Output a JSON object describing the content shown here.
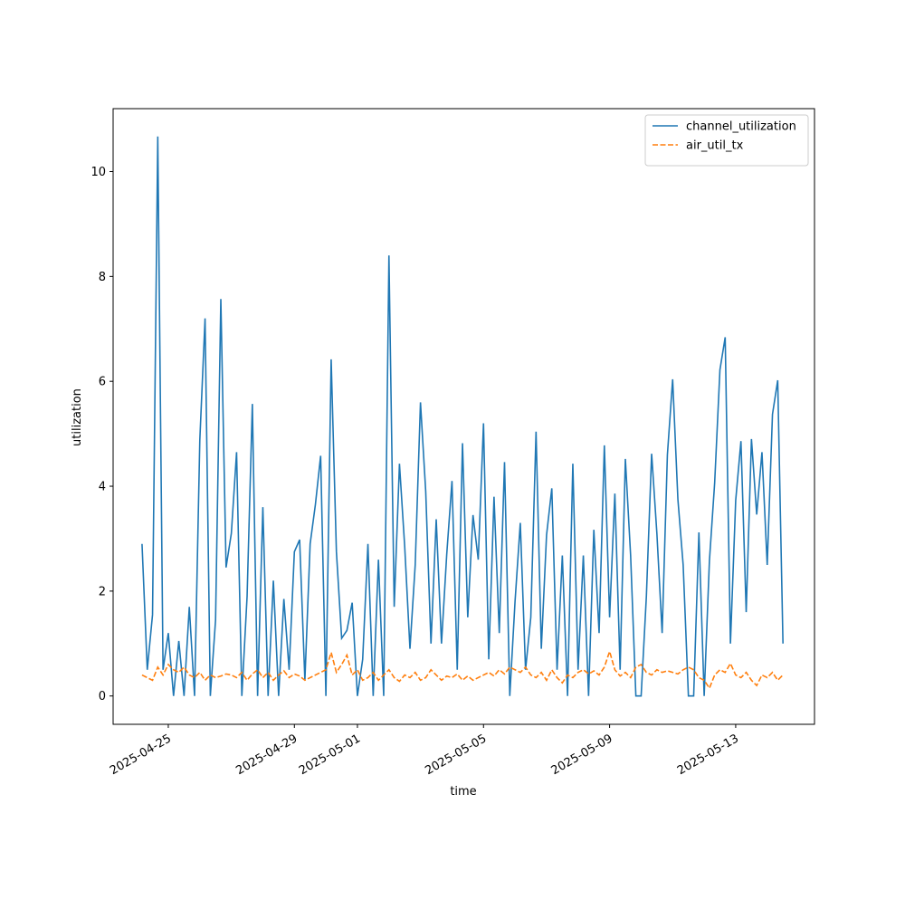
{
  "chart_data": {
    "type": "line",
    "xlabel": "time",
    "ylabel": "utilization",
    "x": [
      "2025-04-24T04:00",
      "2025-04-24T08:00",
      "2025-04-24T12:00",
      "2025-04-24T16:00",
      "2025-04-24T20:00",
      "2025-04-25T00:00",
      "2025-04-25T04:00",
      "2025-04-25T08:00",
      "2025-04-25T12:00",
      "2025-04-25T16:00",
      "2025-04-25T20:00",
      "2025-04-26T00:00",
      "2025-04-26T04:00",
      "2025-04-26T08:00",
      "2025-04-26T12:00",
      "2025-04-26T16:00",
      "2025-04-26T20:00",
      "2025-04-27T00:00",
      "2025-04-27T04:00",
      "2025-04-27T08:00",
      "2025-04-27T12:00",
      "2025-04-27T16:00",
      "2025-04-27T20:00",
      "2025-04-28T00:00",
      "2025-04-28T04:00",
      "2025-04-28T08:00",
      "2025-04-28T12:00",
      "2025-04-28T16:00",
      "2025-04-28T20:00",
      "2025-04-29T00:00",
      "2025-04-29T04:00",
      "2025-04-29T08:00",
      "2025-04-29T12:00",
      "2025-04-29T16:00",
      "2025-04-29T20:00",
      "2025-04-30T00:00",
      "2025-04-30T04:00",
      "2025-04-30T08:00",
      "2025-04-30T12:00",
      "2025-04-30T16:00",
      "2025-04-30T20:00",
      "2025-05-01T00:00",
      "2025-05-01T04:00",
      "2025-05-01T08:00",
      "2025-05-01T12:00",
      "2025-05-01T16:00",
      "2025-05-01T20:00",
      "2025-05-02T00:00",
      "2025-05-02T04:00",
      "2025-05-02T08:00",
      "2025-05-02T12:00",
      "2025-05-02T16:00",
      "2025-05-02T20:00",
      "2025-05-03T00:00",
      "2025-05-03T04:00",
      "2025-05-03T08:00",
      "2025-05-03T12:00",
      "2025-05-03T16:00",
      "2025-05-03T20:00",
      "2025-05-04T00:00",
      "2025-05-04T04:00",
      "2025-05-04T08:00",
      "2025-05-04T12:00",
      "2025-05-04T16:00",
      "2025-05-04T20:00",
      "2025-05-05T00:00",
      "2025-05-05T04:00",
      "2025-05-05T08:00",
      "2025-05-05T12:00",
      "2025-05-05T16:00",
      "2025-05-05T20:00",
      "2025-05-06T00:00",
      "2025-05-06T04:00",
      "2025-05-06T08:00",
      "2025-05-06T12:00",
      "2025-05-06T16:00",
      "2025-05-06T20:00",
      "2025-05-07T00:00",
      "2025-05-07T04:00",
      "2025-05-07T08:00",
      "2025-05-07T12:00",
      "2025-05-07T16:00",
      "2025-05-07T20:00",
      "2025-05-08T00:00",
      "2025-05-08T04:00",
      "2025-05-08T08:00",
      "2025-05-08T12:00",
      "2025-05-08T16:00",
      "2025-05-08T20:00",
      "2025-05-09T00:00",
      "2025-05-09T04:00",
      "2025-05-09T08:00",
      "2025-05-09T12:00",
      "2025-05-09T16:00",
      "2025-05-09T20:00",
      "2025-05-10T00:00",
      "2025-05-10T04:00",
      "2025-05-10T08:00",
      "2025-05-10T12:00",
      "2025-05-10T16:00",
      "2025-05-10T20:00",
      "2025-05-11T00:00",
      "2025-05-11T04:00",
      "2025-05-11T08:00",
      "2025-05-11T12:00",
      "2025-05-11T16:00",
      "2025-05-11T20:00",
      "2025-05-12T00:00",
      "2025-05-12T04:00",
      "2025-05-12T08:00",
      "2025-05-12T12:00",
      "2025-05-12T16:00",
      "2025-05-12T20:00",
      "2025-05-13T00:00",
      "2025-05-13T04:00",
      "2025-05-13T08:00",
      "2025-05-13T12:00",
      "2025-05-13T16:00",
      "2025-05-13T20:00",
      "2025-05-14T00:00",
      "2025-05-14T04:00",
      "2025-05-14T08:00",
      "2025-05-14T12:00"
    ],
    "series": [
      {
        "name": "channel_utilization",
        "color": "#1f77b4",
        "dash": "solid",
        "values": [
          2.9,
          0.5,
          1.55,
          10.67,
          0.5,
          1.2,
          0,
          1.05,
          0,
          1.7,
          0,
          4.88,
          7.2,
          0,
          1.45,
          7.57,
          2.45,
          3.1,
          4.65,
          0,
          1.9,
          5.57,
          0,
          3.6,
          0,
          2.2,
          0,
          1.85,
          0.5,
          2.75,
          2.98,
          0.3,
          2.9,
          3.65,
          4.58,
          0,
          6.42,
          2.75,
          1.1,
          1.25,
          1.78,
          0,
          0.7,
          2.9,
          0,
          2.6,
          0,
          8.4,
          1.7,
          4.43,
          2.85,
          0.9,
          2.5,
          5.6,
          3.9,
          1.0,
          3.37,
          1.0,
          2.7,
          4.1,
          0.5,
          4.82,
          1.5,
          3.45,
          2.6,
          5.2,
          0.7,
          3.8,
          1.2,
          4.46,
          0,
          1.8,
          3.3,
          0.5,
          1.5,
          5.04,
          0.9,
          3.07,
          3.96,
          0.5,
          2.68,
          0,
          4.43,
          0.5,
          2.68,
          0,
          3.17,
          1.2,
          4.78,
          1.5,
          3.86,
          0.5,
          4.52,
          2.68,
          0,
          0,
          1.9,
          4.62,
          3.1,
          1.2,
          4.6,
          6.04,
          3.75,
          2.5,
          0,
          0,
          3.12,
          0,
          2.58,
          4.07,
          6.22,
          6.84,
          1.0,
          3.73,
          4.86,
          1.6,
          4.9,
          3.46,
          4.65,
          2.5,
          5.37,
          6.02,
          1.0
        ]
      },
      {
        "name": "air_util_tx",
        "color": "#ff7f0e",
        "dash": "dashed",
        "values": [
          0.4,
          0.35,
          0.3,
          0.55,
          0.4,
          0.6,
          0.5,
          0.45,
          0.55,
          0.4,
          0.35,
          0.45,
          0.3,
          0.4,
          0.35,
          0.38,
          0.42,
          0.4,
          0.35,
          0.45,
          0.3,
          0.42,
          0.5,
          0.35,
          0.45,
          0.3,
          0.4,
          0.48,
          0.35,
          0.42,
          0.38,
          0.3,
          0.35,
          0.4,
          0.45,
          0.5,
          0.83,
          0.45,
          0.6,
          0.78,
          0.4,
          0.5,
          0.3,
          0.35,
          0.45,
          0.3,
          0.4,
          0.5,
          0.35,
          0.28,
          0.4,
          0.35,
          0.45,
          0.3,
          0.35,
          0.5,
          0.4,
          0.3,
          0.38,
          0.35,
          0.42,
          0.3,
          0.38,
          0.3,
          0.35,
          0.4,
          0.45,
          0.38,
          0.5,
          0.42,
          0.55,
          0.5,
          0.45,
          0.55,
          0.4,
          0.35,
          0.45,
          0.3,
          0.5,
          0.35,
          0.25,
          0.4,
          0.35,
          0.45,
          0.5,
          0.42,
          0.48,
          0.4,
          0.55,
          0.85,
          0.5,
          0.38,
          0.45,
          0.35,
          0.55,
          0.6,
          0.45,
          0.4,
          0.5,
          0.45,
          0.48,
          0.45,
          0.42,
          0.5,
          0.55,
          0.5,
          0.35,
          0.3,
          0.15,
          0.4,
          0.5,
          0.45,
          0.62,
          0.4,
          0.35,
          0.45,
          0.3,
          0.2,
          0.4,
          0.35,
          0.45,
          0.3,
          0.4
        ]
      }
    ],
    "xlim": [
      "2025-04-23T06:00",
      "2025-05-15T12:00"
    ],
    "xticks": [
      "2025-04-25",
      "2025-04-29",
      "2025-05-01",
      "2025-05-05",
      "2025-05-09",
      "2025-05-13"
    ],
    "ylim": [
      -0.54,
      11.2
    ],
    "yticks": [
      0,
      2,
      4,
      6,
      8,
      10
    ],
    "legend": "upper right",
    "grid": false
  }
}
